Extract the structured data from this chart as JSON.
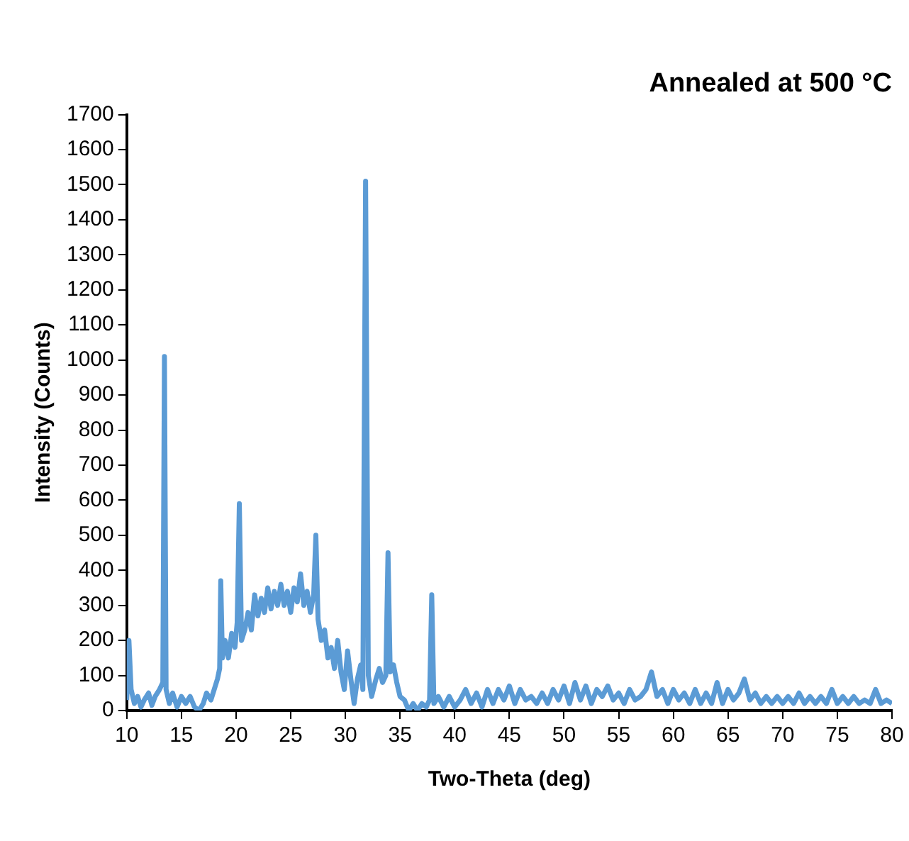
{
  "chart_data": {
    "type": "line",
    "title": "Annealed at 500 °C",
    "xlabel": "Two-Theta (deg)",
    "ylabel": "Intensity (Counts)",
    "xlim": [
      10,
      80
    ],
    "ylim": [
      0,
      1700
    ],
    "xticks": [
      10,
      15,
      20,
      25,
      30,
      35,
      40,
      45,
      50,
      55,
      60,
      65,
      70,
      75,
      80
    ],
    "yticks": [
      0,
      100,
      200,
      300,
      400,
      500,
      600,
      700,
      800,
      900,
      1000,
      1100,
      1200,
      1300,
      1400,
      1500,
      1600,
      1700
    ],
    "grid": false,
    "legend": false,
    "marker": "none",
    "line_style": "solid",
    "series": [
      {
        "color": "#5b9bd5",
        "x": [
          10.0,
          10.2,
          10.4,
          10.7,
          11.0,
          11.3,
          11.6,
          12.0,
          12.3,
          12.6,
          13.0,
          13.3,
          13.45,
          13.6,
          13.9,
          14.2,
          14.6,
          15.0,
          15.4,
          15.8,
          16.2,
          16.6,
          17.0,
          17.3,
          17.7,
          18.0,
          18.3,
          18.5,
          18.6,
          18.75,
          19.0,
          19.3,
          19.6,
          19.9,
          20.1,
          20.3,
          20.5,
          20.8,
          21.1,
          21.4,
          21.7,
          22.0,
          22.3,
          22.6,
          22.9,
          23.2,
          23.5,
          23.8,
          24.1,
          24.4,
          24.7,
          25.0,
          25.3,
          25.6,
          25.9,
          26.2,
          26.5,
          26.8,
          27.1,
          27.3,
          27.5,
          27.8,
          28.1,
          28.4,
          28.7,
          29.0,
          29.3,
          29.6,
          29.9,
          30.2,
          30.5,
          30.8,
          31.1,
          31.4,
          31.6,
          31.85,
          32.1,
          32.4,
          32.8,
          33.1,
          33.4,
          33.7,
          33.9,
          34.1,
          34.4,
          34.7,
          35.0,
          35.4,
          35.8,
          36.2,
          36.6,
          37.0,
          37.4,
          37.7,
          37.9,
          38.1,
          38.5,
          39.0,
          39.5,
          40.0,
          40.5,
          41.0,
          41.5,
          42.0,
          42.5,
          43.0,
          43.5,
          44.0,
          44.5,
          45.0,
          45.5,
          46.0,
          46.5,
          47.0,
          47.5,
          48.0,
          48.5,
          49.0,
          49.5,
          50.0,
          50.5,
          51.0,
          51.5,
          52.0,
          52.5,
          53.0,
          53.5,
          54.0,
          54.5,
          55.0,
          55.5,
          56.0,
          56.5,
          57.0,
          57.5,
          58.0,
          58.5,
          59.0,
          59.5,
          60.0,
          60.5,
          61.0,
          61.5,
          62.0,
          62.5,
          63.0,
          63.5,
          64.0,
          64.5,
          65.0,
          65.5,
          66.0,
          66.5,
          67.0,
          67.5,
          68.0,
          68.5,
          69.0,
          69.5,
          70.0,
          70.5,
          71.0,
          71.5,
          72.0,
          72.5,
          73.0,
          73.5,
          74.0,
          74.5,
          75.0,
          75.5,
          76.0,
          76.5,
          77.0,
          77.5,
          78.0,
          78.5,
          79.0,
          79.5,
          80.0
        ],
        "values": [
          30,
          200,
          60,
          20,
          40,
          10,
          30,
          50,
          15,
          40,
          60,
          80,
          1010,
          60,
          20,
          50,
          10,
          40,
          20,
          40,
          10,
          0,
          20,
          50,
          30,
          60,
          90,
          120,
          370,
          150,
          200,
          150,
          220,
          180,
          250,
          590,
          200,
          230,
          280,
          230,
          330,
          270,
          320,
          280,
          350,
          290,
          340,
          300,
          360,
          300,
          340,
          280,
          350,
          310,
          390,
          300,
          340,
          280,
          330,
          500,
          260,
          200,
          230,
          150,
          180,
          120,
          200,
          110,
          60,
          170,
          90,
          20,
          90,
          130,
          60,
          1510,
          100,
          40,
          90,
          120,
          80,
          100,
          450,
          110,
          130,
          80,
          40,
          30,
          0,
          20,
          0,
          20,
          10,
          30,
          330,
          20,
          40,
          10,
          40,
          10,
          30,
          60,
          20,
          50,
          10,
          60,
          20,
          60,
          30,
          70,
          20,
          60,
          30,
          40,
          20,
          50,
          20,
          60,
          30,
          70,
          20,
          80,
          30,
          70,
          20,
          60,
          40,
          70,
          30,
          50,
          20,
          60,
          30,
          40,
          60,
          110,
          40,
          60,
          20,
          60,
          30,
          50,
          20,
          60,
          20,
          50,
          20,
          80,
          20,
          60,
          30,
          50,
          90,
          30,
          50,
          20,
          40,
          20,
          40,
          20,
          40,
          20,
          50,
          20,
          40,
          20,
          40,
          20,
          60,
          20,
          40,
          20,
          40,
          20,
          30,
          20,
          60,
          20,
          30,
          20
        ]
      }
    ]
  }
}
